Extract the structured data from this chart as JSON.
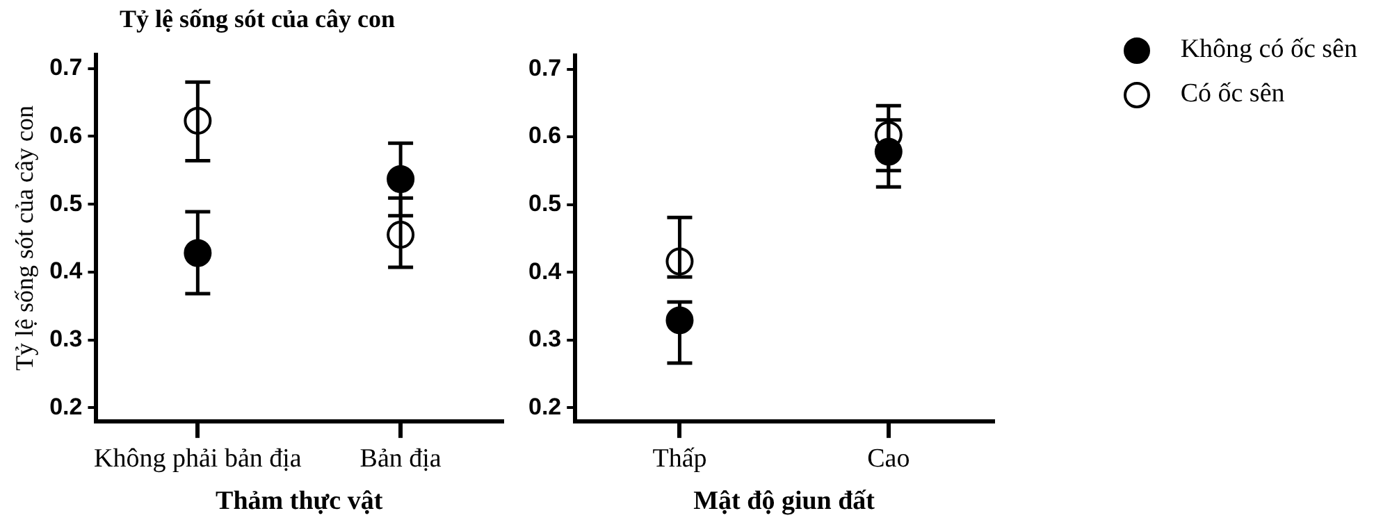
{
  "chart_data": [
    {
      "type": "scatter",
      "title": "Tỷ lệ sống sót của cây con",
      "ylabel": "Tỷ lệ sống sót của cây con",
      "xlabel": "Thảm thực vật",
      "categories": [
        "Không phải bản địa",
        "Bản địa"
      ],
      "marker": "circle",
      "ylim": [
        0.18,
        0.72
      ],
      "yticks": [
        0.2,
        0.3,
        0.4,
        0.5,
        0.6,
        0.7
      ],
      "grid": false,
      "series": [
        {
          "color": "#000000",
          "values": [
            0.428,
            0.537
          ],
          "errors": [
            [
              0.368,
              0.489
            ],
            [
              0.483,
              0.59
            ]
          ]
        },
        {
          "color": "#ffffff",
          "values": [
            0.623,
            0.455
          ],
          "errors": [
            [
              0.564,
              0.68
            ],
            [
              0.407,
              0.509
            ]
          ]
        }
      ]
    },
    {
      "type": "scatter",
      "xlabel": "Mật độ giun đất",
      "categories": [
        "Thấp",
        "Cao"
      ],
      "marker": "circle",
      "ylim": [
        0.18,
        0.72
      ],
      "yticks": [
        0.2,
        0.3,
        0.4,
        0.5,
        0.6,
        0.7
      ],
      "grid": false,
      "legend": "right",
      "series": [
        {
          "name": "Không có ốc sên",
          "color": "#000000",
          "values": [
            0.329,
            0.578
          ],
          "errors": [
            [
              0.266,
              0.356
            ],
            [
              0.526,
              0.625
            ]
          ]
        },
        {
          "name": "Có ốc sên",
          "color": "#ffffff",
          "values": [
            0.416,
            0.603
          ],
          "errors": [
            [
              0.393,
              0.481
            ],
            [
              0.55,
              0.646
            ]
          ]
        }
      ]
    }
  ]
}
